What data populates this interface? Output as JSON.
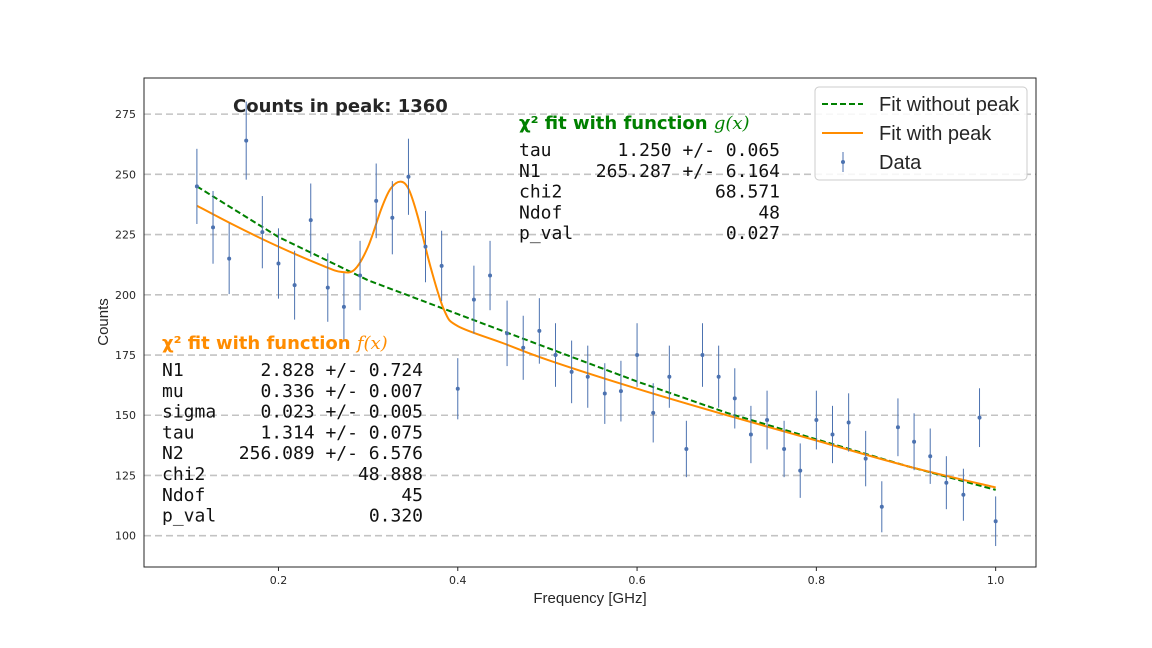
{
  "chart_data": {
    "type": "scatter",
    "xlabel": "Frequency [GHz]",
    "ylabel": "Counts",
    "xlim": [
      0.05,
      1.045
    ],
    "ylim": [
      87,
      290
    ],
    "x_ticks": [
      "0.2",
      "0.4",
      "0.6",
      "0.8",
      "1.0"
    ],
    "x_tick_values": [
      0.2,
      0.4,
      0.6,
      0.8,
      1.0
    ],
    "y_ticks": [
      "100",
      "125",
      "150",
      "175",
      "200",
      "225",
      "250",
      "275"
    ],
    "y_tick_values": [
      100,
      125,
      150,
      175,
      200,
      225,
      250,
      275
    ],
    "grid": "horizontal dashed",
    "legend_placement": "top-right",
    "colors": {
      "data": "#4c72b0",
      "fit_without_peak": "#008000",
      "fit_with_peak": "#ff8c00",
      "grid": "#b0b0b0"
    },
    "series": [
      {
        "name": "Data",
        "style": "errorbar",
        "x": [
          0.109,
          0.127,
          0.145,
          0.164,
          0.182,
          0.2,
          0.218,
          0.236,
          0.255,
          0.273,
          0.291,
          0.309,
          0.327,
          0.345,
          0.364,
          0.382,
          0.4,
          0.418,
          0.436,
          0.455,
          0.473,
          0.491,
          0.509,
          0.527,
          0.545,
          0.564,
          0.582,
          0.6,
          0.618,
          0.636,
          0.655,
          0.673,
          0.691,
          0.709,
          0.727,
          0.745,
          0.764,
          0.782,
          0.8,
          0.818,
          0.836,
          0.855,
          0.873,
          0.891,
          0.909,
          0.927,
          0.945,
          0.964,
          0.982,
          1.0
        ],
        "y": [
          245,
          228,
          215,
          264,
          226,
          213,
          204,
          231,
          203,
          195,
          208,
          239,
          232,
          249,
          220,
          212,
          161,
          198,
          208,
          184,
          178,
          185,
          175,
          168,
          166,
          159,
          160,
          175,
          151,
          166,
          136,
          175,
          166,
          157,
          142,
          148,
          136,
          127,
          148,
          142,
          147,
          132,
          112,
          145,
          139,
          133,
          122,
          117,
          149,
          106
        ],
        "yerr": [
          15.6,
          15.1,
          14.7,
          16.2,
          15.0,
          14.6,
          14.3,
          15.2,
          14.2,
          14.0,
          14.4,
          15.5,
          15.2,
          15.8,
          14.8,
          14.6,
          12.7,
          14.1,
          14.4,
          13.6,
          13.3,
          13.6,
          13.2,
          13.0,
          12.9,
          12.6,
          12.6,
          13.2,
          12.3,
          12.9,
          11.7,
          13.2,
          12.9,
          12.5,
          11.9,
          12.2,
          11.7,
          11.3,
          12.2,
          11.9,
          12.1,
          11.5,
          10.6,
          12.0,
          11.8,
          11.5,
          11.0,
          10.8,
          12.2,
          10.3
        ]
      },
      {
        "name": "Fit without peak",
        "style": "dashed line",
        "x": [
          0.109,
          0.2,
          0.3,
          0.4,
          0.5,
          0.6,
          0.7,
          0.8,
          0.9,
          1.0
        ],
        "y": [
          245,
          224,
          206,
          192,
          178,
          164,
          151,
          140,
          129,
          119
        ]
      },
      {
        "name": "Fit with peak",
        "style": "solid line",
        "x": [
          0.109,
          0.15,
          0.2,
          0.25,
          0.27,
          0.285,
          0.3,
          0.315,
          0.325,
          0.336,
          0.345,
          0.355,
          0.37,
          0.385,
          0.4,
          0.45,
          0.5,
          0.6,
          0.7,
          0.8,
          0.9,
          1.0
        ],
        "y": [
          237,
          229,
          220,
          212,
          209.5,
          210.5,
          220,
          236,
          244,
          247,
          244,
          233,
          211,
          193.5,
          187,
          180,
          173,
          161,
          150,
          139.5,
          129,
          120
        ]
      }
    ],
    "annotations": {
      "peak_counts": "Counts in peak: 1360",
      "fit_g": {
        "title_prefix": "χ² fit with function ",
        "title_func": "g(x)",
        "color": "#008000",
        "rows": [
          {
            "label": "tau",
            "value": "1.250 +/- 0.065"
          },
          {
            "label": "N1",
            "value": "265.287 +/- 6.164"
          },
          {
            "label": "chi2",
            "value": "68.571"
          },
          {
            "label": "Ndof",
            "value": "48"
          },
          {
            "label": "p_val",
            "value": "0.027"
          }
        ]
      },
      "fit_f": {
        "title_prefix": "χ² fit with function ",
        "title_func": "f(x)",
        "color": "#ff8c00",
        "rows": [
          {
            "label": "N1",
            "value": "2.828 +/- 0.724"
          },
          {
            "label": "mu",
            "value": "0.336 +/- 0.007"
          },
          {
            "label": "sigma",
            "value": "0.023 +/- 0.005"
          },
          {
            "label": "tau",
            "value": "1.314 +/- 0.075"
          },
          {
            "label": "N2",
            "value": "256.089 +/- 6.576"
          },
          {
            "label": "chi2",
            "value": "48.888"
          },
          {
            "label": "Ndof",
            "value": "45"
          },
          {
            "label": "p_val",
            "value": "0.320"
          }
        ]
      }
    }
  }
}
